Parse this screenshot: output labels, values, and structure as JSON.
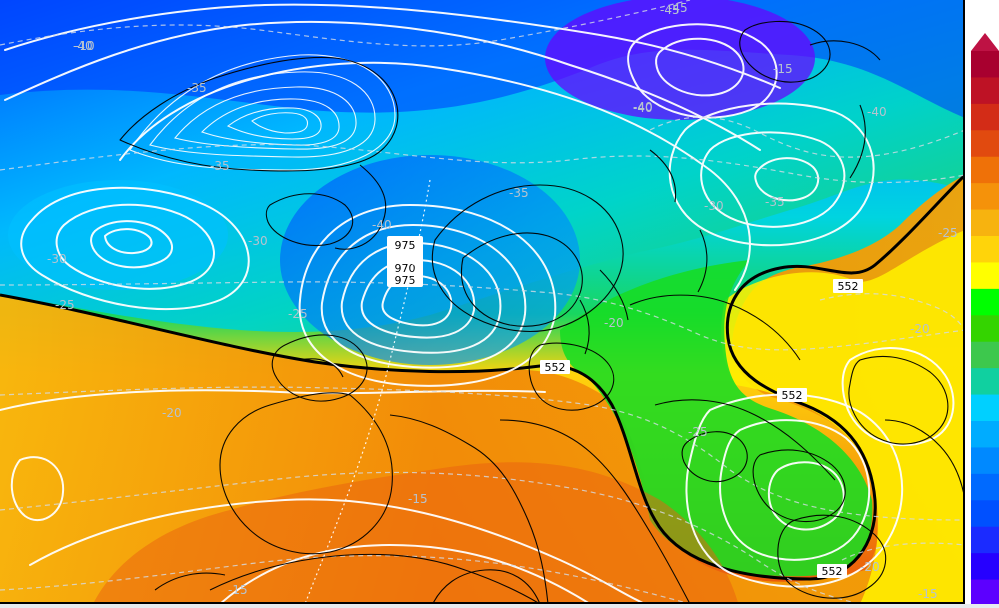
{
  "map": {
    "title": "",
    "colorbar_colors": [
      "#a8002f",
      "#be1225",
      "#d32c17",
      "#e14a0f",
      "#ef7108",
      "#f5920a",
      "#f7b30f",
      "#ffd40a",
      "#ffff00",
      "#00ff00",
      "#34d400",
      "#3dc84d",
      "#10d0a0",
      "#00d0ff",
      "#00acff",
      "#0089ff",
      "#006aff",
      "#0050ff",
      "#1b2bff",
      "#2600ff",
      "#5c00ff"
    ]
  },
  "isohypse_labels": [
    {
      "text": "552"
    },
    {
      "text": "552"
    },
    {
      "text": "552"
    },
    {
      "text": "552"
    }
  ],
  "pressure_labels": [
    {
      "text": "975"
    },
    {
      "text": "970"
    },
    {
      "text": "975"
    }
  ],
  "temperature_labels": [
    {
      "text": "-45"
    },
    {
      "text": "-45"
    },
    {
      "text": "-40"
    },
    {
      "text": "-40"
    },
    {
      "text": "-40"
    },
    {
      "text": "-40"
    },
    {
      "text": "-35"
    },
    {
      "text": "-35"
    },
    {
      "text": "-35"
    },
    {
      "text": "-35"
    },
    {
      "text": "-30"
    },
    {
      "text": "-30"
    },
    {
      "text": "-30"
    },
    {
      "text": "-25"
    },
    {
      "text": "-25"
    },
    {
      "text": "-25"
    },
    {
      "text": "-20"
    },
    {
      "text": "-20"
    },
    {
      "text": "-20"
    },
    {
      "text": "-15"
    },
    {
      "text": "-15"
    },
    {
      "text": "-15"
    },
    {
      "text": "-15"
    },
    {
      "text": "-20"
    },
    {
      "text": "-10"
    },
    {
      "text": "-40"
    },
    {
      "text": "-25"
    }
  ]
}
